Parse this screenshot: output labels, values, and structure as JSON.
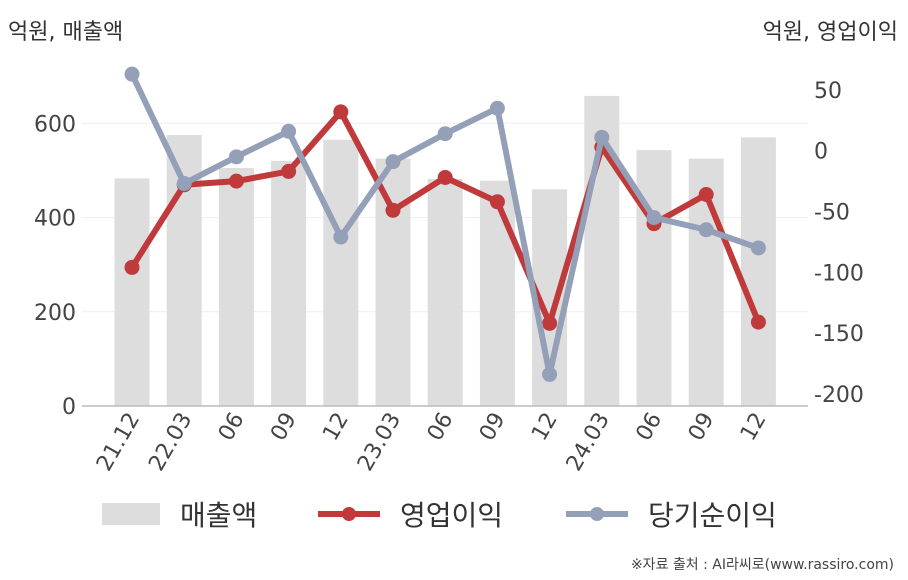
{
  "units": {
    "left": "억원, 매출액",
    "right": "억원, 영업이익"
  },
  "source": "※자료 출처 : AI라씨로(www.rassiro.com)",
  "colors": {
    "bar": "#dddddd",
    "operating": "#c0393b",
    "net": "#94a0b8",
    "axis": "#bbbbbb",
    "grid": "#eeeeee",
    "text": "#444444"
  },
  "legend": [
    {
      "label": "매출액",
      "kind": "bar"
    },
    {
      "label": "영업이익",
      "kind": "line-operating"
    },
    {
      "label": "당기순이익",
      "kind": "line-net"
    }
  ],
  "chart_data": {
    "type": "bar",
    "categories": [
      "21.12",
      "22.03",
      "06",
      "09",
      "12",
      "23.03",
      "06",
      "09",
      "12",
      "24.03",
      "06",
      "09",
      "12"
    ],
    "series": [
      {
        "name": "매출액",
        "type": "bar",
        "axis": "left",
        "values": [
          483,
          575,
          505,
          520,
          565,
          525,
          482,
          478,
          460,
          658,
          543,
          525,
          570
        ]
      },
      {
        "name": "영업이익",
        "type": "line",
        "axis": "right",
        "values": [
          -96,
          -28,
          -25,
          -17,
          32,
          -49,
          -22,
          -42,
          -142,
          3,
          -60,
          -36,
          -141
        ]
      },
      {
        "name": "당기순이익",
        "type": "line",
        "axis": "right",
        "values": [
          63,
          -27,
          -5,
          16,
          -71,
          -9,
          14,
          35,
          -184,
          11,
          -55,
          -65,
          -80
        ]
      }
    ],
    "left_axis": {
      "ylim": [
        0,
        730
      ],
      "ticks": [
        0,
        200,
        400,
        600
      ]
    },
    "right_axis": {
      "ylim": [
        -210,
        73
      ],
      "ticks": [
        50,
        0,
        -50,
        -100,
        -150,
        -200
      ]
    },
    "grid": true,
    "legend_position": "bottom"
  }
}
